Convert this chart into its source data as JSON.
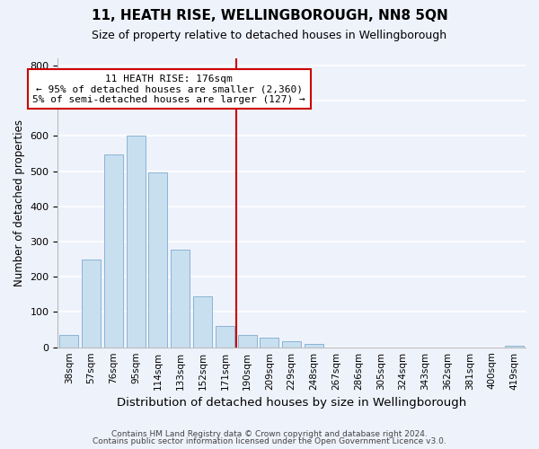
{
  "title": "11, HEATH RISE, WELLINGBOROUGH, NN8 5QN",
  "subtitle": "Size of property relative to detached houses in Wellingborough",
  "xlabel": "Distribution of detached houses by size in Wellingborough",
  "ylabel": "Number of detached properties",
  "bar_labels": [
    "38sqm",
    "57sqm",
    "76sqm",
    "95sqm",
    "114sqm",
    "133sqm",
    "152sqm",
    "171sqm",
    "190sqm",
    "209sqm",
    "229sqm",
    "248sqm",
    "267sqm",
    "286sqm",
    "305sqm",
    "324sqm",
    "343sqm",
    "362sqm",
    "381sqm",
    "400sqm",
    "419sqm"
  ],
  "bar_heights": [
    35,
    250,
    548,
    600,
    495,
    278,
    145,
    60,
    35,
    28,
    18,
    10,
    0,
    0,
    0,
    0,
    0,
    0,
    0,
    0,
    5
  ],
  "bar_color": "#c8dff0",
  "bar_edge_color": "#8ab4d4",
  "vline_x": 7.5,
  "vline_color": "#cc0000",
  "annotation_title": "11 HEATH RISE: 176sqm",
  "annotation_line1": "← 95% of detached houses are smaller (2,360)",
  "annotation_line2": "5% of semi-detached houses are larger (127) →",
  "annotation_box_color": "#ffffff",
  "annotation_box_edge": "#cc0000",
  "ylim": [
    0,
    820
  ],
  "yticks": [
    0,
    100,
    200,
    300,
    400,
    500,
    600,
    700,
    800
  ],
  "footer1": "Contains HM Land Registry data © Crown copyright and database right 2024.",
  "footer2": "Contains public sector information licensed under the Open Government Licence v3.0.",
  "bg_color": "#eef2fb"
}
